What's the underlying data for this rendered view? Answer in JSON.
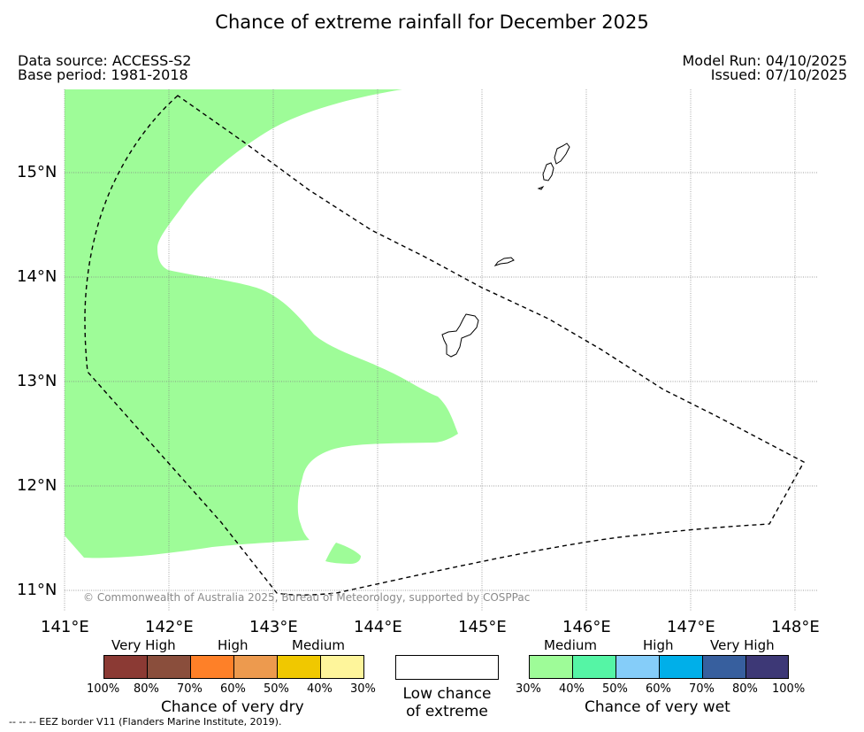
{
  "title": "Chance of extreme rainfall for December 2025",
  "meta": {
    "data_source": "Data source: ACCESS-S2",
    "base_period": "Base period: 1981-2018",
    "model_run": "Model Run: 04/10/2025",
    "issued": "Issued: 07/10/2025"
  },
  "map": {
    "lat_labels": [
      "15°N",
      "14°N",
      "13°N",
      "12°N",
      "11°N"
    ],
    "lon_labels": [
      "141°E",
      "142°E",
      "143°E",
      "144°E",
      "145°E",
      "146°E",
      "147°E",
      "148°E"
    ],
    "copyright": "© Commonwealth of Australia 2025, Bureau of Meteorology, supported by COSPPac",
    "wet_region_color": "#9efc98"
  },
  "legend": {
    "dry": {
      "categories": [
        "Very High",
        "High",
        "Medium"
      ],
      "colors": [
        "#8b3a34",
        "#8a4e3c",
        "#fe8028",
        "#ed9a4e",
        "#f0c800",
        "#fef59b"
      ],
      "ticks": [
        "100%",
        "80%",
        "70%",
        "60%",
        "50%",
        "40%",
        "30%"
      ],
      "caption": "Chance of very dry"
    },
    "low": {
      "line1": "Low chance",
      "line2": "of extreme"
    },
    "wet": {
      "categories": [
        "Medium",
        "High",
        "Very High"
      ],
      "colors": [
        "#9efc98",
        "#55f5a5",
        "#85cdf9",
        "#00afe9",
        "#375f9e",
        "#3d3876"
      ],
      "ticks": [
        "30%",
        "40%",
        "50%",
        "60%",
        "70%",
        "80%",
        "100%"
      ],
      "caption": "Chance of very wet"
    }
  },
  "footnote": "--  --  -- EEZ border V11 (Flanders Marine Institute, 2019)."
}
